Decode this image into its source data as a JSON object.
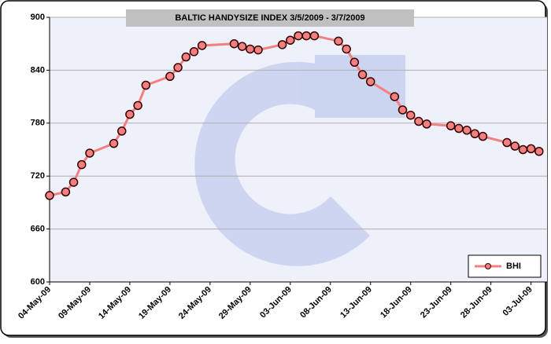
{
  "chart_data": {
    "type": "line",
    "title": "BALTIC HANDYSIZE INDEX 3/5/2009 - 3/7/2009",
    "x": [
      "2009-05-04",
      "2009-05-06",
      "2009-05-07",
      "2009-05-08",
      "2009-05-09",
      "2009-05-12",
      "2009-05-13",
      "2009-05-14",
      "2009-05-15",
      "2009-05-16",
      "2009-05-19",
      "2009-05-20",
      "2009-05-21",
      "2009-05-22",
      "2009-05-23",
      "2009-05-27",
      "2009-05-28",
      "2009-05-29",
      "2009-05-30",
      "2009-06-02",
      "2009-06-03",
      "2009-06-04",
      "2009-06-05",
      "2009-06-06",
      "2009-06-09",
      "2009-06-10",
      "2009-06-11",
      "2009-06-12",
      "2009-06-13",
      "2009-06-16",
      "2009-06-17",
      "2009-06-18",
      "2009-06-19",
      "2009-06-20",
      "2009-06-23",
      "2009-06-24",
      "2009-06-25",
      "2009-06-26",
      "2009-06-27",
      "2009-06-30",
      "2009-07-01",
      "2009-07-02",
      "2009-07-03",
      "2009-07-04"
    ],
    "series": [
      {
        "name": "BHI",
        "color": "#f47f7f",
        "values": [
          698,
          702,
          713,
          733,
          746,
          757,
          771,
          790,
          800,
          823,
          833,
          843,
          855,
          861,
          868,
          870,
          867,
          864,
          863,
          869,
          874,
          879,
          879,
          879,
          873,
          864,
          849,
          835,
          827,
          810,
          795,
          789,
          782,
          779,
          777,
          774,
          772,
          768,
          765,
          758,
          754,
          750,
          751,
          748
        ]
      }
    ],
    "xlim": [
      "2009-05-04",
      "2009-07-05"
    ],
    "xticks": [
      {
        "value": "2009-05-04",
        "label": "04-May-09"
      },
      {
        "value": "2009-05-09",
        "label": "09-May-09"
      },
      {
        "value": "2009-05-14",
        "label": "14-May-09"
      },
      {
        "value": "2009-05-19",
        "label": "19-May-09"
      },
      {
        "value": "2009-05-24",
        "label": "24-May-09"
      },
      {
        "value": "2009-05-29",
        "label": "29-May-09"
      },
      {
        "value": "2009-06-03",
        "label": "03-Jun-09"
      },
      {
        "value": "2009-06-08",
        "label": "08-Jun-09"
      },
      {
        "value": "2009-06-13",
        "label": "13-Jun-09"
      },
      {
        "value": "2009-06-18",
        "label": "18-Jun-09"
      },
      {
        "value": "2009-06-23",
        "label": "23-Jun-09"
      },
      {
        "value": "2009-06-28",
        "label": "28-Jun-09"
      },
      {
        "value": "2009-07-03",
        "label": "03-Jul-09"
      }
    ],
    "ylim": [
      600,
      900
    ],
    "yticks": [
      600,
      660,
      720,
      780,
      840,
      900
    ],
    "grid": true,
    "legend": "lower right"
  }
}
